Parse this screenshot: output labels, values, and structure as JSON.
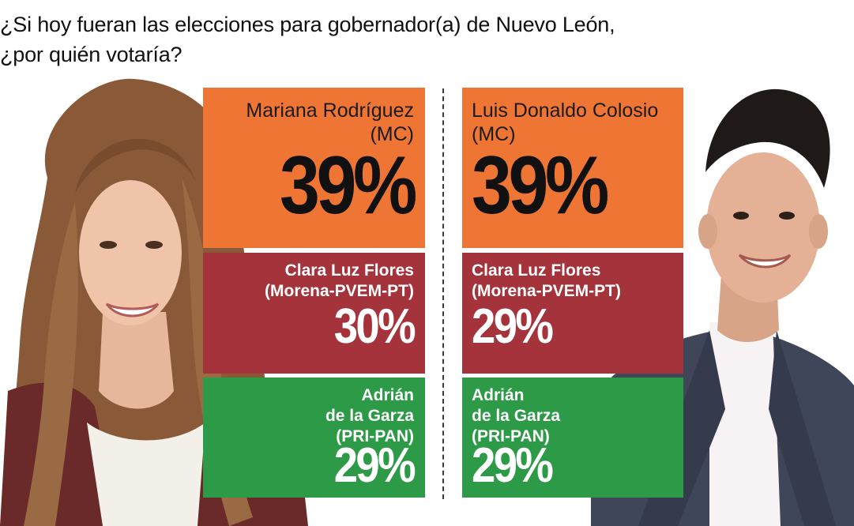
{
  "question": {
    "line1": "¿Si hoy fueran las elecciones para gobernador(a) de Nuevo León,",
    "line2": "¿por quién votaría?"
  },
  "left": {
    "lead": {
      "name": "Mariana Rodríguez",
      "party": "(MC)",
      "pct": "39%"
    },
    "second": {
      "name": "Clara Luz Flores",
      "party": "(Morena-PVEM-PT)",
      "pct": "30%"
    },
    "third": {
      "name_line1": "Adrián",
      "name_line2": "de la Garza",
      "party": "(PRI-PAN)",
      "pct": "29%"
    }
  },
  "right": {
    "lead": {
      "name": "Luis Donaldo Colosio",
      "party": "(MC)",
      "pct": "39%"
    },
    "second": {
      "name": "Clara Luz Flores",
      "party": "(Morena-PVEM-PT)",
      "pct": "29%"
    },
    "third": {
      "name_line1": "Adrián",
      "name_line2": "de la Garza",
      "party": "(PRI-PAN)",
      "pct": "29%"
    }
  },
  "colors": {
    "orange": "#ef7535",
    "red": "#a5333c",
    "green": "#2c9a46"
  }
}
